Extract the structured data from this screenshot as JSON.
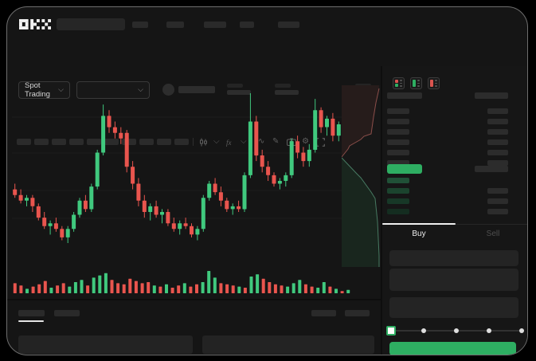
{
  "colors": {
    "accent_green": "#2eae62",
    "bid_bar_shades": [
      "#205137",
      "#1b442e",
      "#173827",
      "#142d20"
    ],
    "orderbook_red": "#d9544f",
    "depth_ask_fill": "rgba(222,85,80,0.08)",
    "depth_ask_line": "rgba(228,122,115,0.55)",
    "depth_bid_fill": "rgba(46,174,98,0.10)",
    "depth_bid_line": "rgba(120,214,170,0.5)"
  },
  "header": {
    "logo": "OKX",
    "nav_placeholder_count": 5
  },
  "market_bar": {
    "pair_selector": "Spot Trading",
    "stat_group_count": 5
  },
  "chart_toolbar": {
    "timeframe_count": 10,
    "icons": [
      "candlestick-style-icon",
      "chevron-down-icon",
      "indicators-icon",
      "chevron-down-icon",
      "line-tool-icon",
      "draw-tool-icon",
      "camera-icon",
      "settings-icon",
      "fullscreen-icon"
    ]
  },
  "chart_data": {
    "type": "candlestick",
    "up_color": "#40c97e",
    "down_color": "#e9554e",
    "grid": true,
    "candles": [
      [
        46,
        48,
        43,
        44
      ],
      [
        44,
        46,
        41,
        42
      ],
      [
        42,
        44,
        40,
        43
      ],
      [
        43,
        44,
        38,
        40
      ],
      [
        40,
        41,
        35,
        36
      ],
      [
        36,
        38,
        32,
        33
      ],
      [
        33,
        35,
        30,
        34
      ],
      [
        34,
        36,
        31,
        32
      ],
      [
        32,
        33,
        28,
        29
      ],
      [
        29,
        33,
        27,
        32
      ],
      [
        32,
        38,
        31,
        37
      ],
      [
        37,
        43,
        36,
        42
      ],
      [
        42,
        44,
        38,
        39
      ],
      [
        39,
        48,
        38,
        47
      ],
      [
        47,
        60,
        46,
        59
      ],
      [
        59,
        76,
        58,
        72
      ],
      [
        72,
        74,
        66,
        68
      ],
      [
        68,
        70,
        64,
        66
      ],
      [
        66,
        68,
        62,
        64
      ],
      [
        66,
        67,
        52,
        54
      ],
      [
        54,
        56,
        46,
        48
      ],
      [
        48,
        50,
        40,
        42
      ],
      [
        42,
        44,
        36,
        38
      ],
      [
        38,
        41,
        35,
        40
      ],
      [
        40,
        42,
        36,
        37
      ],
      [
        37,
        39,
        34,
        38
      ],
      [
        38,
        39,
        33,
        34
      ],
      [
        34,
        36,
        31,
        32
      ],
      [
        32,
        35,
        30,
        34
      ],
      [
        34,
        36,
        32,
        33
      ],
      [
        33,
        34,
        29,
        30
      ],
      [
        30,
        33,
        28,
        32
      ],
      [
        32,
        44,
        31,
        43
      ],
      [
        43,
        49,
        42,
        48
      ],
      [
        48,
        50,
        44,
        45
      ],
      [
        45,
        47,
        40,
        42
      ],
      [
        42,
        43,
        38,
        39
      ],
      [
        39,
        41,
        37,
        40
      ],
      [
        40,
        42,
        38,
        39
      ],
      [
        39,
        52,
        38,
        51
      ],
      [
        51,
        80,
        50,
        70
      ],
      [
        70,
        72,
        56,
        58
      ],
      [
        58,
        60,
        52,
        54
      ],
      [
        54,
        56,
        49,
        51
      ],
      [
        51,
        52,
        47,
        48
      ],
      [
        48,
        50,
        46,
        49
      ],
      [
        49,
        52,
        47,
        51
      ],
      [
        51,
        64,
        50,
        63
      ],
      [
        63,
        65,
        57,
        59
      ],
      [
        59,
        61,
        54,
        56
      ],
      [
        56,
        62,
        54,
        60
      ],
      [
        60,
        78,
        59,
        74
      ],
      [
        74,
        75,
        66,
        68
      ],
      [
        68,
        72,
        65,
        71
      ],
      [
        71,
        73,
        63,
        65
      ],
      [
        65,
        70,
        63,
        69
      ]
    ],
    "volumes": [
      9,
      7,
      4,
      6,
      8,
      11,
      5,
      7,
      9,
      6,
      10,
      12,
      7,
      14,
      16,
      18,
      12,
      9,
      8,
      13,
      11,
      9,
      10,
      7,
      6,
      8,
      5,
      7,
      9,
      6,
      8,
      10,
      20,
      14,
      9,
      8,
      7,
      6,
      5,
      15,
      17,
      13,
      10,
      8,
      7,
      6,
      9,
      12,
      8,
      6,
      5,
      10,
      6,
      4,
      2,
      3
    ]
  },
  "orderbook": {
    "view_icons": [
      "orderbook-split-icon",
      "orderbook-bids-icon",
      "orderbook-asks-icon"
    ],
    "ask_row_count": 6,
    "bid_row_count": 4,
    "bid_amount_rows": [
      1,
      2,
      3
    ]
  },
  "trade": {
    "buy_tab": "Buy",
    "sell_tab": "Sell",
    "active_tab": "Buy",
    "field_count": 3,
    "slider_stop_count": 5
  },
  "bottom_panel": {
    "left_tab_count": 2,
    "right_tab_count": 2,
    "table_rect_count": 2
  }
}
